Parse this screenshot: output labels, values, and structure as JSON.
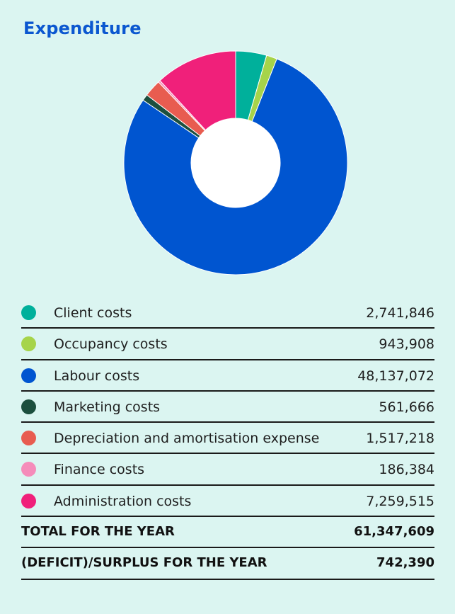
{
  "title": "Expenditure",
  "chart_data": {
    "type": "pie",
    "title": "Expenditure",
    "donut": true,
    "categories": [
      "Client costs",
      "Occupancy costs",
      "Labour costs",
      "Marketing costs",
      "Depreciation and amortisation expense",
      "Finance costs",
      "Administration costs"
    ],
    "values": [
      2741846,
      943908,
      48137072,
      561666,
      1517218,
      186384,
      7259515
    ],
    "colors": [
      "#00b09b",
      "#a6d44a",
      "#0055d0",
      "#1c4f3e",
      "#e85c50",
      "#f58cba",
      "#f0207a"
    ],
    "legend": "bottom"
  },
  "rows": [
    {
      "label": "Client costs",
      "value": "2,741,846",
      "color": "#00b09b"
    },
    {
      "label": "Occupancy costs",
      "value": "943,908",
      "color": "#a6d44a"
    },
    {
      "label": "Labour costs",
      "value": "48,137,072",
      "color": "#0055d0"
    },
    {
      "label": "Marketing costs",
      "value": "561,666",
      "color": "#1c4f3e"
    },
    {
      "label": "Depreciation and amortisation expense",
      "value": "1,517,218",
      "color": "#e85c50"
    },
    {
      "label": "Finance costs",
      "value": "186,384",
      "color": "#f58cba"
    },
    {
      "label": "Administration costs",
      "value": "7,259,515",
      "color": "#f0207a"
    }
  ],
  "totals": [
    {
      "label": "TOTAL FOR THE YEAR",
      "value": "61,347,609"
    },
    {
      "label": "(DEFICIT)/SURPLUS FOR THE YEAR",
      "value": "742,390"
    }
  ]
}
